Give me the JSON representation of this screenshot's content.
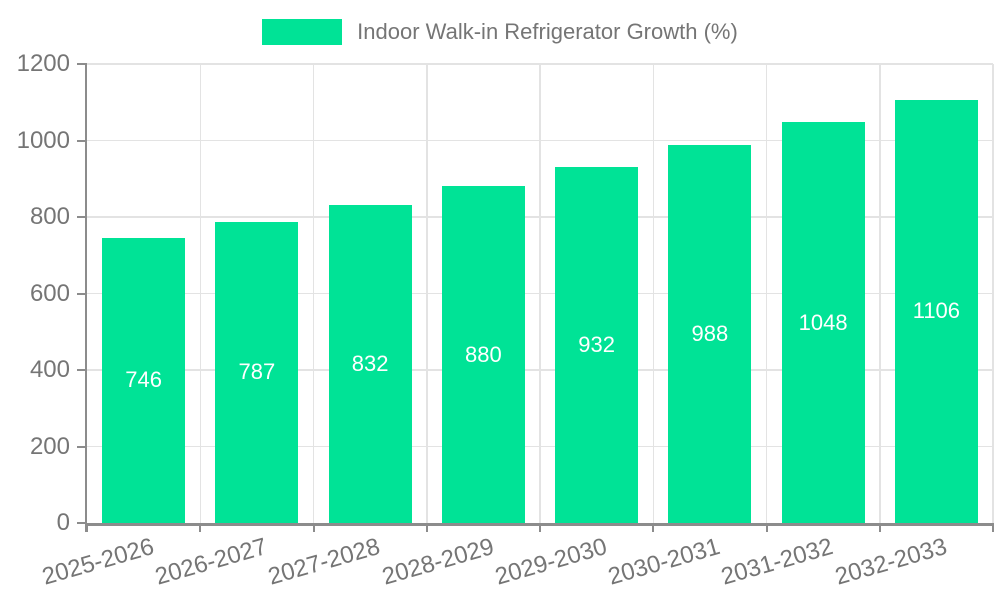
{
  "chart_data": {
    "type": "bar",
    "title": "Indoor Walk-in Refrigerator Growth (%)",
    "legend": {
      "label": "Indoor Walk-in Refrigerator Growth (%)",
      "position": "top-center"
    },
    "categories": [
      "2025-2026",
      "2026-2027",
      "2027-2028",
      "2028-2029",
      "2029-2030",
      "2030-2031",
      "2031-2032",
      "2032-2033"
    ],
    "values": [
      746,
      787,
      832,
      880,
      932,
      988,
      1048,
      1106
    ],
    "xlabel": "",
    "ylabel": "",
    "ylim": [
      0,
      1200
    ],
    "yticks": [
      0,
      200,
      400,
      600,
      800,
      1000,
      1200
    ],
    "grid": true,
    "value_labels_shown": true,
    "colors": {
      "bar": "#00E396",
      "value_label": "#ffffff",
      "axis": "#8c8c8c",
      "gridline": "#e3e3e3",
      "tick_label": "#757575",
      "background": "#ffffff"
    }
  }
}
